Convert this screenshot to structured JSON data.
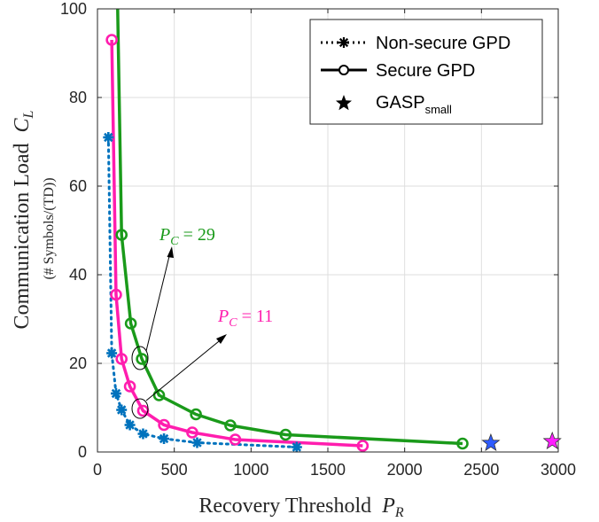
{
  "chart_data": {
    "type": "line",
    "xlabel": "Recovery Threshold",
    "xlabel_symbol": "P",
    "xlabel_symbol_sub": "R",
    "ylabel": "Communication Load",
    "ylabel_symbol": "C",
    "ylabel_symbol_sub": "L",
    "ylabel_unit": "(# Symbols/(TD))",
    "xlim": [
      0,
      3000
    ],
    "ylim": [
      0,
      100
    ],
    "xticks": [
      0,
      500,
      1000,
      1500,
      2000,
      2500,
      3000
    ],
    "yticks": [
      0,
      20,
      40,
      60,
      80,
      100
    ],
    "grid": true,
    "legend_position": "top-right",
    "series": [
      {
        "name": "Non-secure GPD",
        "style": "dotted",
        "marker": "asterisk",
        "color": "#0072BD",
        "x": [
          71,
          93,
          121,
          157,
          211,
          297,
          433,
          649,
          1297
        ],
        "y": [
          71,
          22.3,
          13.2,
          9.5,
          6.1,
          4.1,
          3.0,
          2.1,
          1.1
        ]
      },
      {
        "name": "Secure GPD",
        "style": "solid",
        "marker": "circle",
        "color": "#FF1DAE",
        "x": [
          93,
          121,
          157,
          211,
          297,
          433,
          617,
          897,
          1727
        ],
        "y": [
          93,
          35.5,
          21.0,
          14.8,
          9.3,
          6.1,
          4.4,
          2.8,
          1.4
        ]
      },
      {
        "name": "",
        "style": "solid",
        "marker": "circle",
        "color": "#1A9A1A",
        "x": [
          121,
          157,
          217,
          289,
          401,
          641,
          865,
          1225,
          2377
        ],
        "y": [
          121,
          49,
          29,
          21,
          12.8,
          8.5,
          6.0,
          3.9,
          1.9
        ]
      }
    ],
    "gasp_points": [
      {
        "x": 2561,
        "y": 2.0,
        "color": "#2E5BFF"
      },
      {
        "x": 2961,
        "y": 2.4,
        "color": "#FF1DFF"
      }
    ],
    "legend": [
      {
        "label": "Non-secure GPD",
        "style": "dotted",
        "marker": "asterisk"
      },
      {
        "label": "Secure GPD",
        "style": "solid",
        "marker": "circle"
      },
      {
        "label": "GASP",
        "label_sub": "small",
        "style": "none",
        "marker": "star"
      }
    ],
    "annotations": [
      {
        "symbol": "P",
        "sub": "C",
        "eq": " = 29",
        "color": "#1A9A1A",
        "target": [
          289,
          21
        ]
      },
      {
        "symbol": "P",
        "sub": "C",
        "eq": " = 11",
        "color": "#FF1DAE",
        "target": [
          297,
          9.3
        ]
      }
    ]
  }
}
